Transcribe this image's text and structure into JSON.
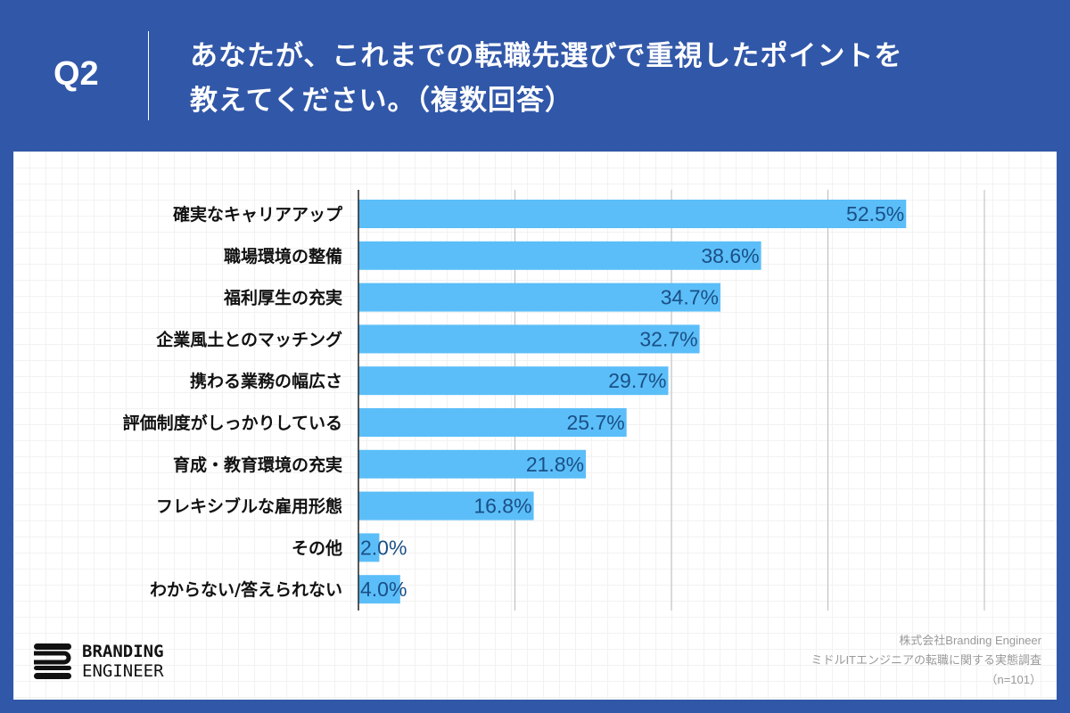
{
  "header": {
    "q_label": "Q2",
    "title_line1": "あなたが、これまでの転職先選びで重視したポイントを",
    "title_line2": "教えてください。（複数回答）"
  },
  "chart_data": {
    "type": "bar",
    "orientation": "horizontal",
    "categories": [
      "確実なキャリアアップ",
      "職場環境の整備",
      "福利厚生の充実",
      "企業風土とのマッチング",
      "携わる業務の幅広さ",
      "評価制度がしっかりしている",
      "育成・教育環境の充実",
      "フレキシブルな雇用形態",
      "その他",
      "わからない/答えられない"
    ],
    "values": [
      52.5,
      38.6,
      34.7,
      32.7,
      29.7,
      25.7,
      21.8,
      16.8,
      2.0,
      4.0
    ],
    "value_labels": [
      "52.5%",
      "38.6%",
      "34.7%",
      "32.7%",
      "29.7%",
      "25.7%",
      "21.8%",
      "16.8%",
      "2.0%",
      "4.0%"
    ],
    "xlim": [
      0,
      60
    ],
    "grid_step": 15,
    "grid": true,
    "colors": {
      "bar": "#5bbef8",
      "label": "#1a4f86",
      "grid": "#bbbbbb"
    }
  },
  "logo": {
    "line1": "BRANDING",
    "line2": "ENGINEER"
  },
  "credit": {
    "company": "株式会社Branding Engineer",
    "survey": "ミドルITエンジニアの転職に関する実態調査",
    "n": "（n=101）"
  }
}
